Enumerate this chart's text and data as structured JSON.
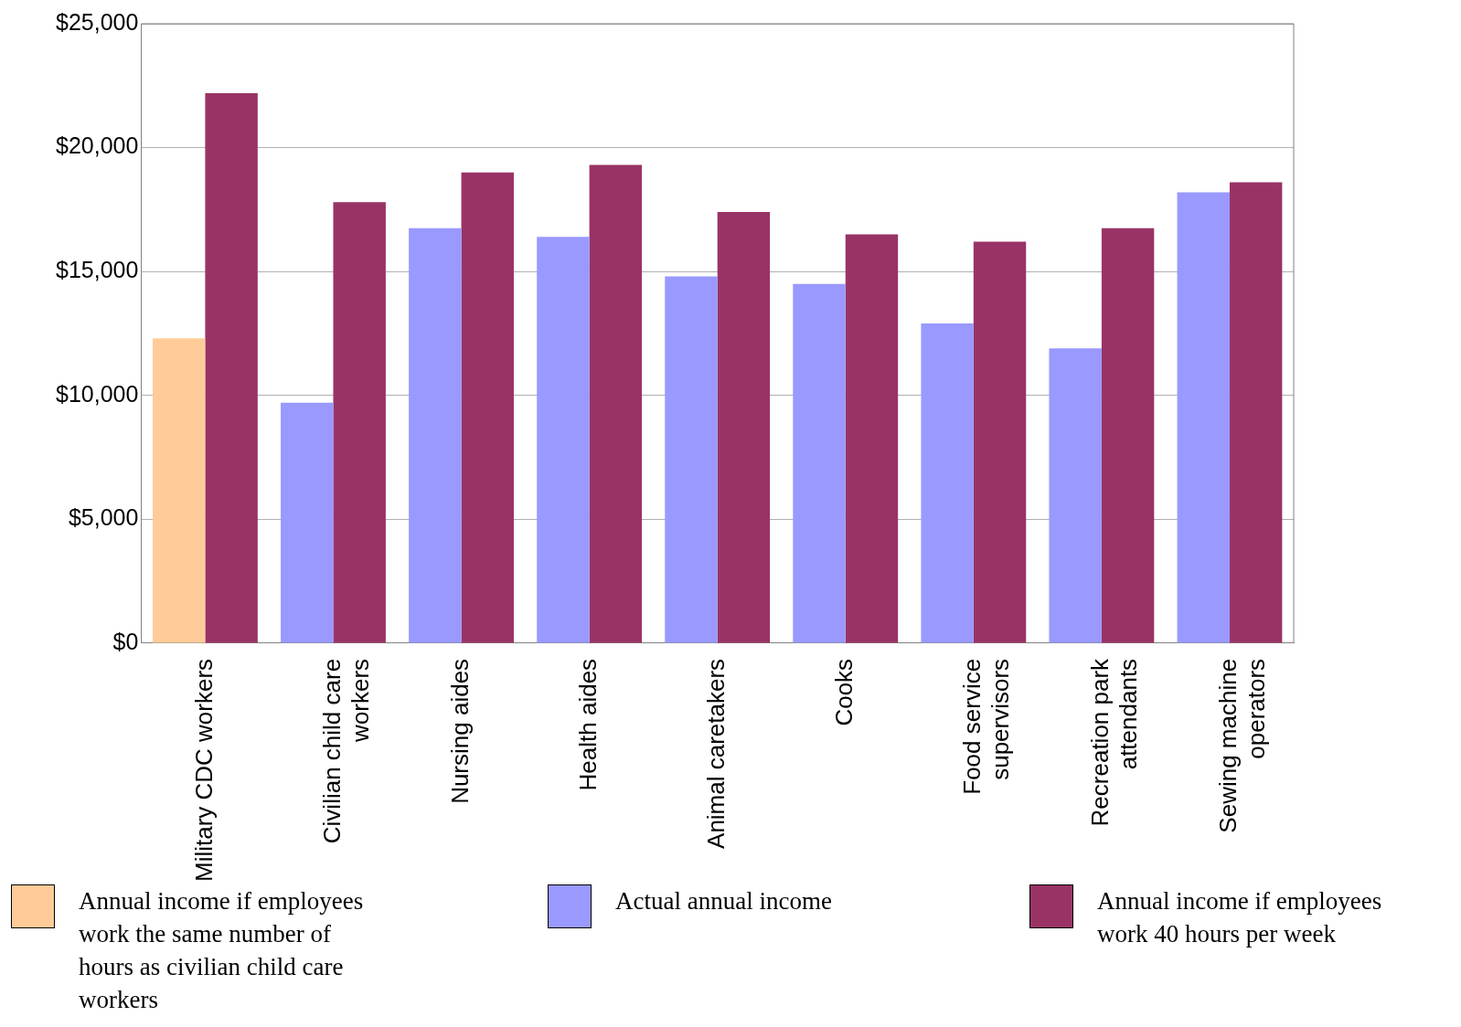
{
  "chart_data": {
    "type": "bar",
    "categories": [
      "Military CDC workers",
      "Civilian child care workers",
      "Nursing aides",
      "Health aides",
      "Animal caretakers",
      "Cooks",
      "Food service supervisors",
      "Recreation park attendants",
      "Sewing machine operators"
    ],
    "series": [
      {
        "name": "Annual income if employees work the same number of hours as civilian child care workers",
        "color": "#ffcc99",
        "values": [
          12300,
          null,
          null,
          null,
          null,
          null,
          null,
          null,
          null
        ]
      },
      {
        "name": "Actual annual income",
        "color": "#9999ff",
        "values": [
          null,
          9700,
          16750,
          16400,
          14800,
          14500,
          12900,
          11900,
          18200
        ]
      },
      {
        "name": "Annual income if employees work 40 hours per week",
        "color": "#993366",
        "values": [
          22200,
          17800,
          19000,
          19300,
          17400,
          16500,
          16200,
          16750,
          18600
        ]
      }
    ],
    "ylim": [
      0,
      25000
    ],
    "yticks": [
      {
        "value": 0,
        "label": "$0"
      },
      {
        "value": 5000,
        "label": "$5,000"
      },
      {
        "value": 10000,
        "label": "$10,000"
      },
      {
        "value": 15000,
        "label": "$15,000"
      },
      {
        "value": 20000,
        "label": "$20,000"
      },
      {
        "value": 25000,
        "label": "$25,000"
      }
    ],
    "grid": "y",
    "legend": "bottom"
  }
}
